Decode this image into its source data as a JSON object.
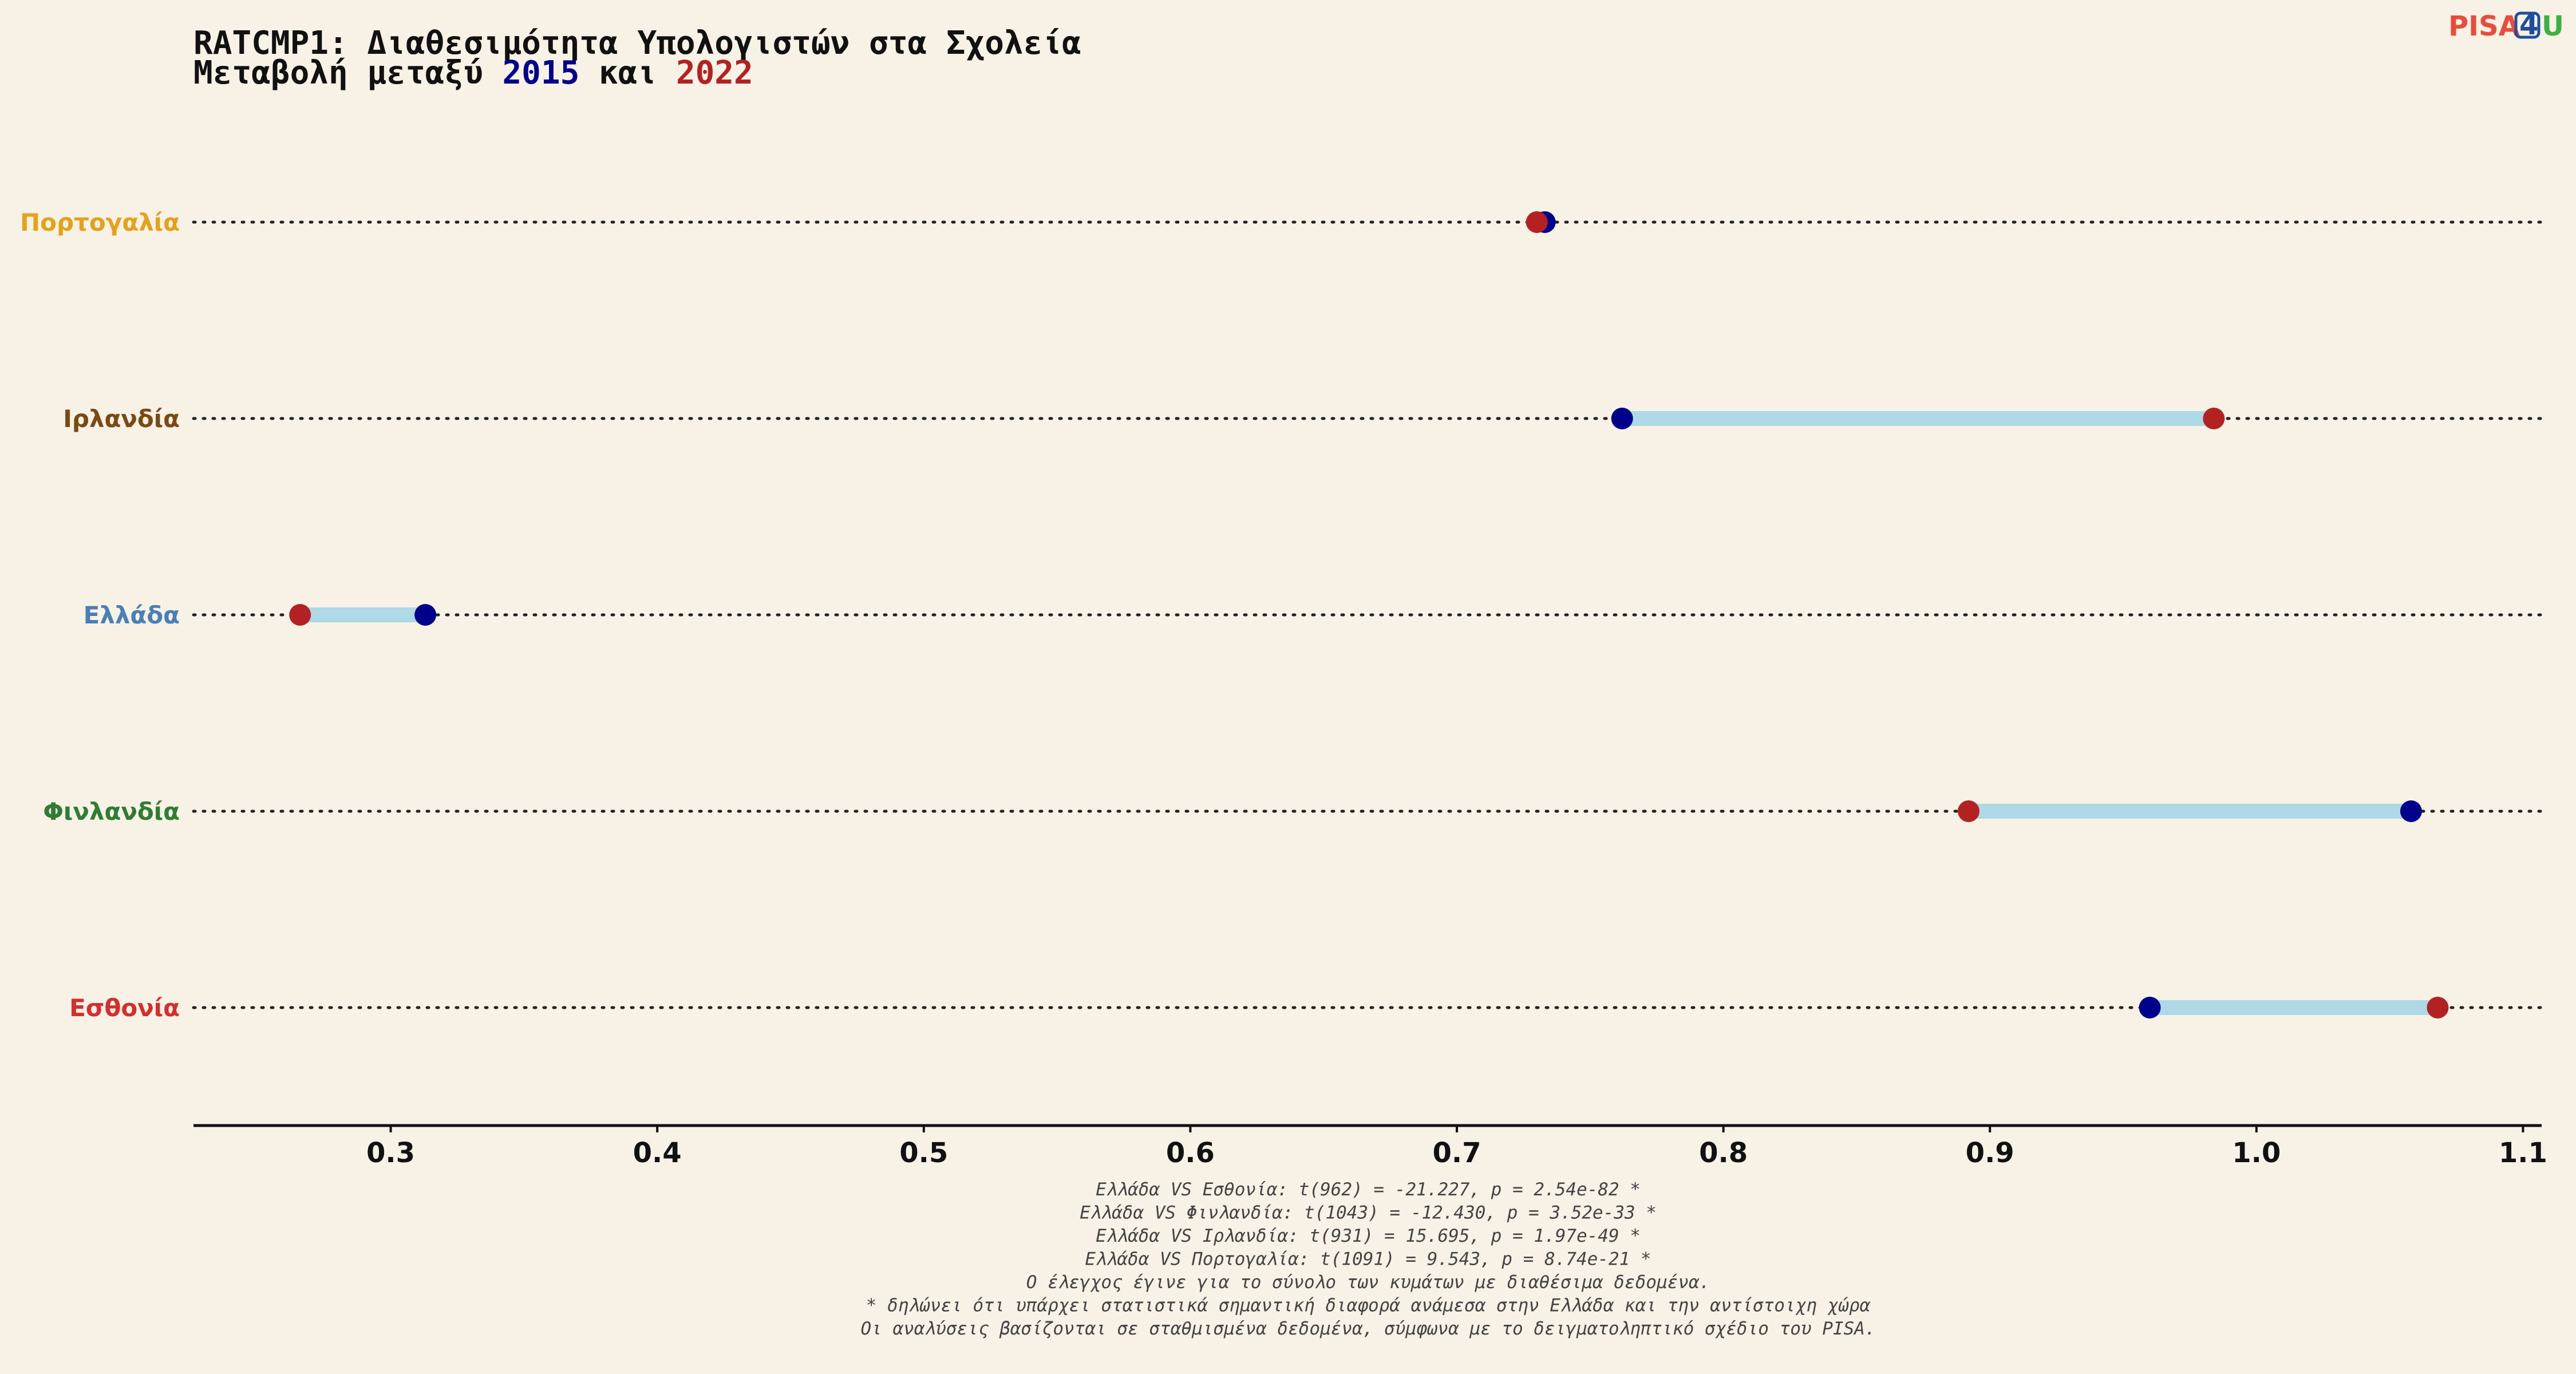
{
  "chart_data": {
    "type": "dumbbell",
    "title": "RATCMP1: Διαθεσιμότητα Υπολογιστών στα Σχολεία",
    "subtitle_prefix": "Μεταβολή μεταξύ ",
    "subtitle_mid": " και ",
    "years": [
      {
        "label": "2015",
        "color": "#00008b"
      },
      {
        "label": "2022",
        "color": "#b22222"
      }
    ],
    "countries": [
      {
        "name": "Πορτογαλία",
        "color": "#e3a21a",
        "v2015": 0.733,
        "v2022": 0.73
      },
      {
        "name": "Ιρλανδία",
        "color": "#7b4a12",
        "v2015": 0.762,
        "v2022": 0.984
      },
      {
        "name": "Ελλάδα",
        "color": "#4a7fb5",
        "v2015": 0.313,
        "v2022": 0.266
      },
      {
        "name": "Φινλανδία",
        "color": "#2e7d32",
        "v2015": 1.058,
        "v2022": 0.892
      },
      {
        "name": "Εσθονία",
        "color": "#d32f2f",
        "v2015": 0.96,
        "v2022": 1.068
      }
    ],
    "xlim": [
      0.226,
      1.107
    ],
    "xticks": [
      "0.3",
      "0.4",
      "0.5",
      "0.6",
      "0.7",
      "0.8",
      "0.9",
      "1.0",
      "1.1"
    ],
    "connector_color": "#add8e6",
    "grid": "dotted-per-row"
  },
  "notes": [
    "Ελλάδα VS Εσθονία: t(962) = -21.227, p = 2.54e-82 *",
    "Ελλάδα VS Φινλανδία: t(1043) = -12.430, p = 3.52e-33 *",
    "Ελλάδα VS Ιρλανδία: t(931) = 15.695, p = 1.97e-49 *",
    "Ελλάδα VS Πορτογαλία: t(1091) = 9.543, p = 8.74e-21 *",
    "Ο έλεγχος έγινε για το σύνολο των κυμάτων με διαθέσιμα δεδομένα.",
    "* δηλώνει ότι υπάρχει στατιστικά σημαντική διαφορά ανάμεσα στην Ελλάδα και την αντίστοιχη χώρα",
    "Οι αναλύσεις βασίζονται σε σταθμισμένα δεδομένα, σύμφωνα με το δειγματοληπτικό σχέδιο του PISA."
  ],
  "logo": {
    "part1": "PISA",
    "part1_color": "#e74c3c",
    "part2": "4",
    "part2_color": "#1f4e9c",
    "part3": "U",
    "part3_color": "#3cb043"
  }
}
